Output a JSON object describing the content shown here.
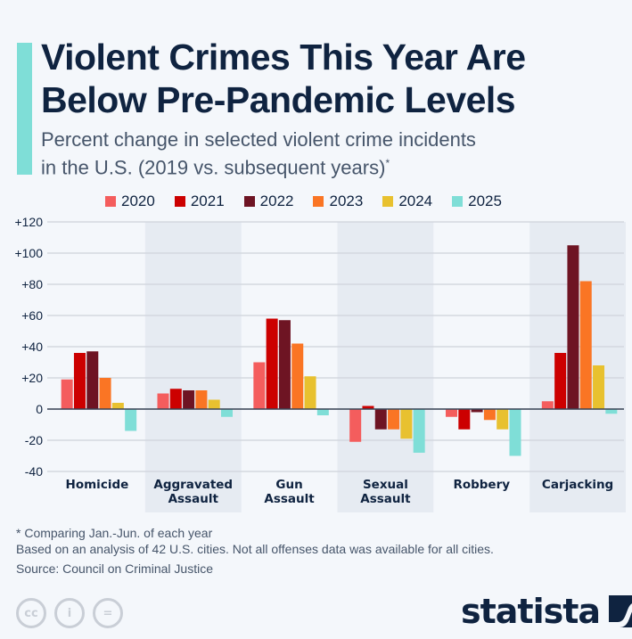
{
  "title_line1": "Violent Crimes This Year Are",
  "title_line2": "Below Pre-Pandemic Levels",
  "subtitle_line1": "Percent change in selected violent crime incidents",
  "subtitle_line2": "in the U.S. (2019 vs. subsequent years)",
  "subtitle_mark": "*",
  "colors": {
    "accent": "#7fded7",
    "title": "#0f2340",
    "band": "#e6ebf2"
  },
  "chart_data": {
    "type": "bar",
    "title": "Violent Crimes This Year Are Below Pre-Pandemic Levels",
    "subtitle": "Percent change in selected violent crime incidents in the U.S. (2019 vs. subsequent years)*",
    "xlabel": "",
    "ylabel": "",
    "ylim": [
      -40,
      120
    ],
    "yticks": [
      -40,
      -20,
      0,
      20,
      40,
      60,
      80,
      100,
      120
    ],
    "ytick_labels": [
      "-40",
      "-20",
      "0",
      "+20",
      "+40",
      "+60",
      "+80",
      "+100",
      "+120"
    ],
    "grid": true,
    "legend_position": "top",
    "categories": [
      "Homicide",
      "Aggravated Assault",
      "Gun Assault",
      "Sexual Assault",
      "Robbery",
      "Carjacking"
    ],
    "category_lines": [
      [
        "Homicide"
      ],
      [
        "Aggravated",
        "Assault"
      ],
      [
        "Gun",
        "Assault"
      ],
      [
        "Sexual",
        "Assault"
      ],
      [
        "Robbery"
      ],
      [
        "Carjacking"
      ]
    ],
    "series": [
      {
        "name": "2020",
        "color": "#f45d5d",
        "values": [
          19,
          10,
          30,
          -21,
          -5,
          5
        ]
      },
      {
        "name": "2021",
        "color": "#cc0000",
        "values": [
          36,
          13,
          58,
          2,
          -13,
          36
        ]
      },
      {
        "name": "2022",
        "color": "#6e1423",
        "values": [
          37,
          12,
          57,
          -13,
          -2,
          105
        ]
      },
      {
        "name": "2023",
        "color": "#fa7524",
        "values": [
          20,
          12,
          42,
          -13,
          -7,
          82
        ]
      },
      {
        "name": "2024",
        "color": "#e8c12f",
        "values": [
          4,
          6,
          21,
          -19,
          -13,
          28
        ]
      },
      {
        "name": "2025",
        "color": "#7fded7",
        "values": [
          -14,
          -5,
          -4,
          -28,
          -30,
          -3
        ]
      }
    ]
  },
  "footnotes": {
    "note1": "* Comparing Jan.-Jun. of each year",
    "note2": "Based on an analysis of 42 U.S. cities. Not all offenses data was available for all cities.",
    "source": "Source: Council on Criminal Justice"
  },
  "license_icons": [
    "cc",
    "by",
    "nd"
  ],
  "license_glyphs": {
    "cc": "cc",
    "by": "i",
    "nd": "="
  },
  "brand": "statista"
}
